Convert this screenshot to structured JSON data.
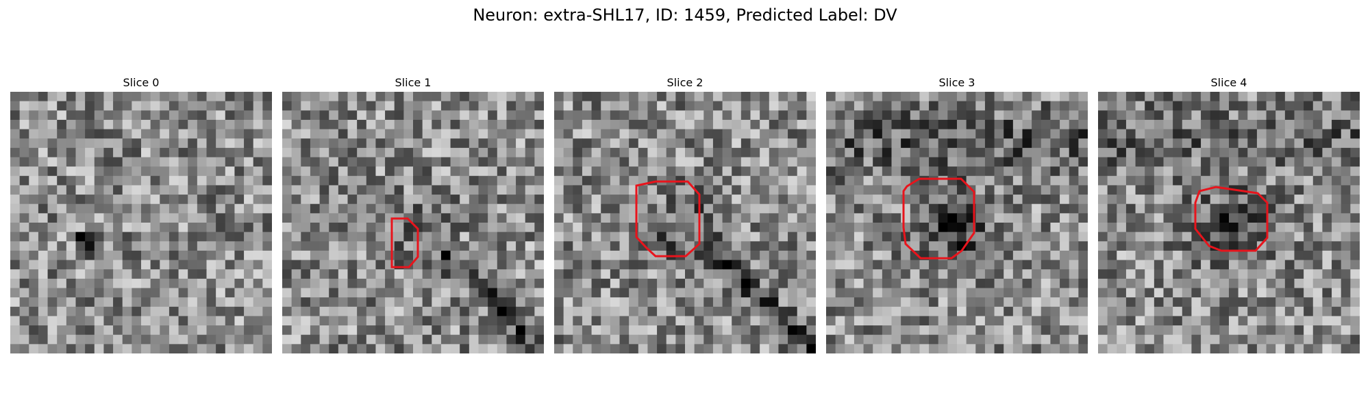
{
  "figure": {
    "title": "Neuron: extra-SHL17, ID: 1459, Predicted Label: DV"
  },
  "colors": {
    "outline": "#e8141c",
    "background": "#ffffff"
  },
  "panels": [
    {
      "label": "Slice 0",
      "has_outline": false,
      "seed": 11,
      "darkness": 0.0
    },
    {
      "label": "Slice 1",
      "has_outline": true,
      "seed": 23,
      "darkness": 0.25
    },
    {
      "label": "Slice 2",
      "has_outline": true,
      "seed": 37,
      "darkness": 0.45
    },
    {
      "label": "Slice 3",
      "has_outline": true,
      "seed": 51,
      "darkness": 0.75
    },
    {
      "label": "Slice 4",
      "has_outline": true,
      "seed": 67,
      "darkness": 0.6
    }
  ]
}
